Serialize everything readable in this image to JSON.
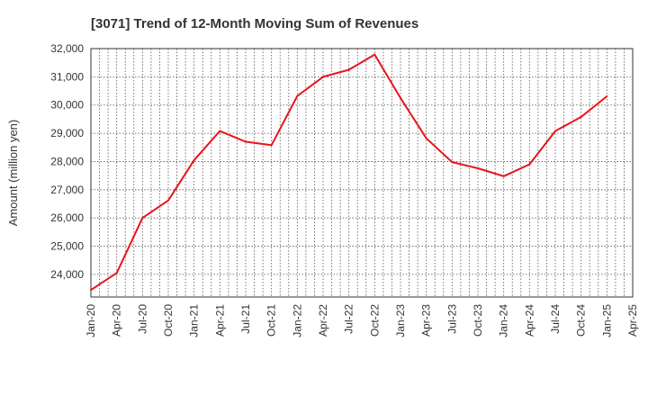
{
  "chart_data": {
    "type": "line",
    "title": "[3071]  Trend of 12-Month Moving Sum of Revenues",
    "ylabel": "Amount (million yen)",
    "xlabel": "",
    "ylim": [
      23200,
      32000
    ],
    "y_ticks": [
      24000,
      25000,
      26000,
      27000,
      28000,
      29000,
      30000,
      31000,
      32000
    ],
    "x_tick_labels": [
      "Jan-20",
      "Apr-20",
      "Jul-20",
      "Oct-20",
      "Jan-21",
      "Apr-21",
      "Jul-21",
      "Oct-21",
      "Jan-22",
      "Apr-22",
      "Jul-22",
      "Oct-22",
      "Jan-23",
      "Apr-23",
      "Jul-23",
      "Oct-23",
      "Jan-24",
      "Apr-24",
      "Jul-24",
      "Oct-24",
      "Jan-25",
      "Apr-25"
    ],
    "grid": true,
    "series": [
      {
        "color": "#e8141c",
        "x": [
          "Jan-20",
          "Apr-20",
          "Jul-20",
          "Oct-20",
          "Jan-21",
          "Apr-21",
          "Jul-21",
          "Oct-21",
          "Jan-22",
          "Apr-22",
          "Jul-22",
          "Oct-22",
          "Jan-23",
          "Apr-23",
          "Jul-23",
          "Oct-23",
          "Jan-24",
          "Apr-24",
          "Jul-24",
          "Oct-24",
          "Jan-25"
        ],
        "values": [
          23450,
          24050,
          26000,
          26620,
          28050,
          29080,
          28700,
          28580,
          30320,
          31000,
          31250,
          31790,
          30250,
          28820,
          27980,
          27760,
          27480,
          27900,
          29080,
          29580,
          30310
        ]
      }
    ]
  }
}
